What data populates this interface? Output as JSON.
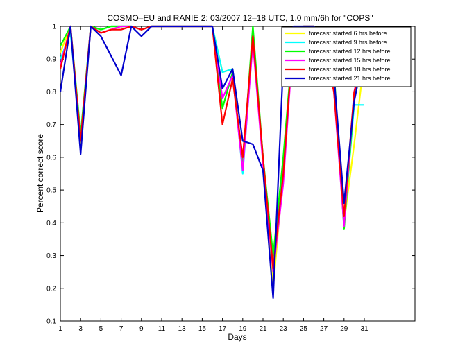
{
  "chart_data": {
    "type": "line",
    "title": "COSMO–EU and RANIE 2: 03/2007 12–18 UTC, 1.0 mm/6h for \"COPS\"",
    "xlabel": "Days",
    "ylabel": "Percent correct score",
    "xlim": [
      1,
      36
    ],
    "ylim": [
      0.1,
      1.0
    ],
    "xticks": [
      1,
      3,
      5,
      7,
      9,
      11,
      13,
      15,
      17,
      19,
      21,
      23,
      25,
      27,
      29,
      31
    ],
    "yticks": [
      0.1,
      0.2,
      0.3,
      0.4,
      0.5,
      0.6,
      0.7,
      0.8,
      0.9,
      1.0
    ],
    "ytick_labels": [
      "0.1",
      "0.2",
      "0.3",
      "0.4",
      "0.5",
      "0.6",
      "0.7",
      "0.8",
      "0.9",
      "1"
    ],
    "grid": false,
    "legend_position": "top-right",
    "series": [
      {
        "name": "forecast started 6 hrs before",
        "color": "#ffff00",
        "points": [
          [
            1,
            0.92
          ],
          [
            2,
            1.0
          ],
          [
            3,
            0.64
          ],
          [
            4,
            1.0
          ],
          [
            5,
            0.99
          ],
          [
            6,
            1.0
          ],
          [
            7,
            1.0
          ],
          [
            8,
            1.0
          ],
          [
            9,
            0.99
          ],
          [
            10,
            1.0
          ],
          [
            16,
            1.0
          ],
          [
            17,
            0.86
          ],
          [
            18,
            0.87
          ],
          [
            19,
            0.56
          ],
          [
            20,
            0.97
          ],
          [
            21,
            0.6
          ],
          [
            22,
            0.2
          ],
          [
            23,
            0.55
          ],
          [
            24,
            0.99
          ],
          [
            25,
            1.0
          ],
          [
            26,
            1.0
          ],
          [
            27,
            0.96
          ],
          [
            28,
            0.82
          ],
          [
            29,
            0.4
          ],
          [
            30,
            0.64
          ],
          [
            31,
            0.9
          ]
        ]
      },
      {
        "name": "forecast started 9 hrs before",
        "color": "#00ffff",
        "points": [
          [
            1,
            0.9
          ],
          [
            2,
            0.98
          ],
          [
            3,
            0.66
          ],
          [
            4,
            1.0
          ],
          [
            5,
            0.99
          ],
          [
            6,
            1.0
          ],
          [
            7,
            1.0
          ],
          [
            8,
            1.0
          ],
          [
            9,
            0.99
          ],
          [
            10,
            1.0
          ],
          [
            16,
            1.0
          ],
          [
            17,
            0.86
          ],
          [
            18,
            0.87
          ],
          [
            19,
            0.55
          ],
          [
            20,
            0.96
          ],
          [
            21,
            0.6
          ],
          [
            22,
            0.28
          ],
          [
            23,
            0.56
          ],
          [
            24,
            0.98
          ],
          [
            25,
            1.0
          ],
          [
            26,
            1.0
          ],
          [
            27,
            0.95
          ],
          [
            28,
            0.83
          ],
          [
            29,
            0.39
          ],
          [
            30,
            0.76
          ],
          [
            31,
            0.76
          ]
        ]
      },
      {
        "name": "forecast started 12 hrs before",
        "color": "#00ff00",
        "points": [
          [
            1,
            0.94
          ],
          [
            2,
            1.0
          ],
          [
            3,
            0.67
          ],
          [
            4,
            1.0
          ],
          [
            5,
            0.99
          ],
          [
            6,
            1.0
          ],
          [
            7,
            1.0
          ],
          [
            8,
            1.0
          ],
          [
            9,
            0.99
          ],
          [
            10,
            1.0
          ],
          [
            16,
            1.0
          ],
          [
            17,
            0.75
          ],
          [
            18,
            0.86
          ],
          [
            19,
            0.57
          ],
          [
            20,
            1.0
          ],
          [
            21,
            0.6
          ],
          [
            22,
            0.3
          ],
          [
            23,
            0.6
          ],
          [
            24,
            0.97
          ],
          [
            25,
            1.0
          ],
          [
            26,
            1.0
          ],
          [
            27,
            0.97
          ],
          [
            28,
            0.87
          ],
          [
            29,
            0.38
          ],
          [
            30,
            0.78
          ],
          [
            31,
            0.9
          ]
        ]
      },
      {
        "name": "forecast started 15 hrs before",
        "color": "#ff00ff",
        "points": [
          [
            1,
            0.88
          ],
          [
            2,
            1.0
          ],
          [
            3,
            0.65
          ],
          [
            4,
            1.0
          ],
          [
            5,
            0.98
          ],
          [
            6,
            0.99
          ],
          [
            7,
            1.0
          ],
          [
            8,
            1.0
          ],
          [
            9,
            0.99
          ],
          [
            10,
            1.0
          ],
          [
            16,
            1.0
          ],
          [
            17,
            0.78
          ],
          [
            18,
            0.85
          ],
          [
            19,
            0.56
          ],
          [
            20,
            0.95
          ],
          [
            21,
            0.58
          ],
          [
            22,
            0.25
          ],
          [
            23,
            0.52
          ],
          [
            24,
            0.97
          ],
          [
            25,
            1.0
          ],
          [
            26,
            1.0
          ],
          [
            27,
            0.94
          ],
          [
            28,
            0.8
          ],
          [
            29,
            0.39
          ],
          [
            30,
            0.8
          ],
          [
            31,
            0.94
          ]
        ]
      },
      {
        "name": "forecast started 18 hrs before",
        "color": "#ff0000",
        "points": [
          [
            1,
            0.87
          ],
          [
            2,
            1.0
          ],
          [
            3,
            0.65
          ],
          [
            4,
            1.0
          ],
          [
            5,
            0.98
          ],
          [
            6,
            0.99
          ],
          [
            7,
            0.99
          ],
          [
            8,
            1.0
          ],
          [
            9,
            0.99
          ],
          [
            10,
            1.0
          ],
          [
            16,
            1.0
          ],
          [
            17,
            0.7
          ],
          [
            18,
            0.84
          ],
          [
            19,
            0.6
          ],
          [
            20,
            0.97
          ],
          [
            21,
            0.6
          ],
          [
            22,
            0.26
          ],
          [
            23,
            0.55
          ],
          [
            24,
            0.98
          ],
          [
            25,
            1.0
          ],
          [
            26,
            1.0
          ],
          [
            27,
            0.95
          ],
          [
            28,
            0.8
          ],
          [
            29,
            0.42
          ],
          [
            30,
            0.8
          ],
          [
            31,
            0.9
          ]
        ]
      },
      {
        "name": "forecast started 21 hrs before",
        "color": "#0000cc",
        "points": [
          [
            1,
            0.8
          ],
          [
            2,
            1.0
          ],
          [
            3,
            0.61
          ],
          [
            4,
            1.0
          ],
          [
            5,
            0.97
          ],
          [
            6,
            0.91
          ],
          [
            7,
            0.85
          ],
          [
            8,
            1.0
          ],
          [
            9,
            0.97
          ],
          [
            10,
            1.0
          ],
          [
            16,
            1.0
          ],
          [
            17,
            0.81
          ],
          [
            18,
            0.87
          ],
          [
            19,
            0.65
          ],
          [
            20,
            0.64
          ],
          [
            21,
            0.56
          ],
          [
            22,
            0.17
          ],
          [
            23,
            0.89
          ],
          [
            24,
            1.0
          ],
          [
            25,
            1.0
          ],
          [
            26,
            1.0
          ],
          [
            27,
            0.97
          ],
          [
            28,
            0.85
          ],
          [
            29,
            0.46
          ],
          [
            30,
            0.77
          ],
          [
            31,
            0.93
          ]
        ]
      }
    ]
  }
}
